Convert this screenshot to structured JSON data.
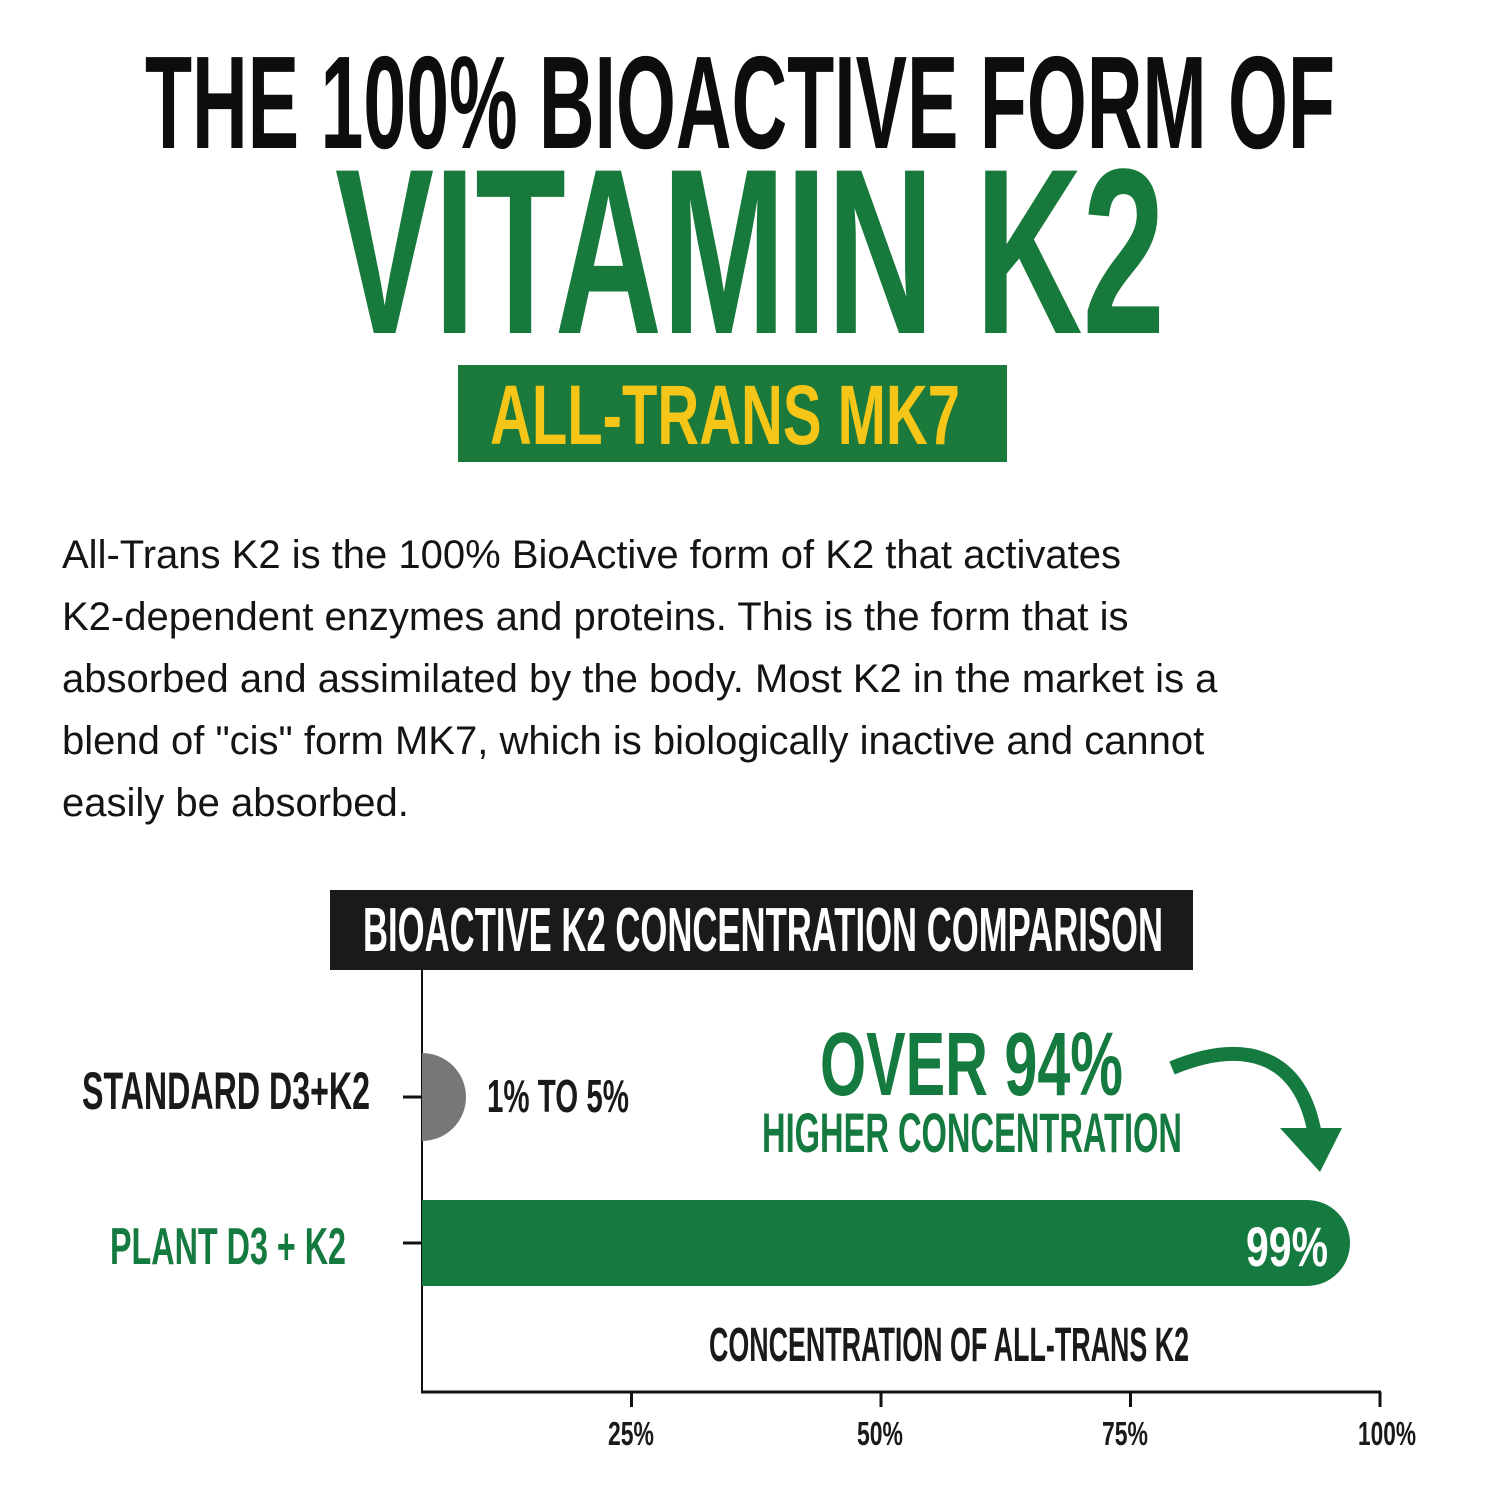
{
  "header": {
    "line1": "THE 100% BIOACTIVE FORM OF",
    "line2": "VITAMIN K2",
    "badge": "ALL-TRANS MK7"
  },
  "description": {
    "lines": [
      "All-Trans K2 is the 100% BioActive form of K2 that activates",
      "K2-dependent enzymes and proteins. This is the form that is",
      "absorbed and assimilated by the body. Most K2 in the market is a",
      "blend of \"cis\" form MK7, which is biologically inactive and cannot",
      "easily be absorbed."
    ]
  },
  "callout": {
    "headline": "OVER 94%",
    "subline": "HIGHER CONCENTRATION"
  },
  "colors": {
    "green": "#157a3f",
    "yellow": "#f5c518",
    "gray": "#777777",
    "dark": "#1a1a1a"
  },
  "chart_data": {
    "type": "bar",
    "orientation": "horizontal",
    "title": "BIOACTIVE K2 CONCENTRATION COMPARISON",
    "xlabel": "CONCENTRATION OF ALL-TRANS K2",
    "categories": [
      "STANDARD D3+K2",
      "PLANT D3 + K2"
    ],
    "values": [
      [
        1,
        5
      ],
      99
    ],
    "data_labels": [
      "1% TO 5%",
      "99%"
    ],
    "bar_colors": [
      "#777777",
      "#157a3f"
    ],
    "xlim": [
      0,
      100
    ],
    "xticks": [
      "25%",
      "50%",
      "75%",
      "100%"
    ],
    "xtick_values": [
      25,
      50,
      75,
      100
    ],
    "grid": false
  }
}
